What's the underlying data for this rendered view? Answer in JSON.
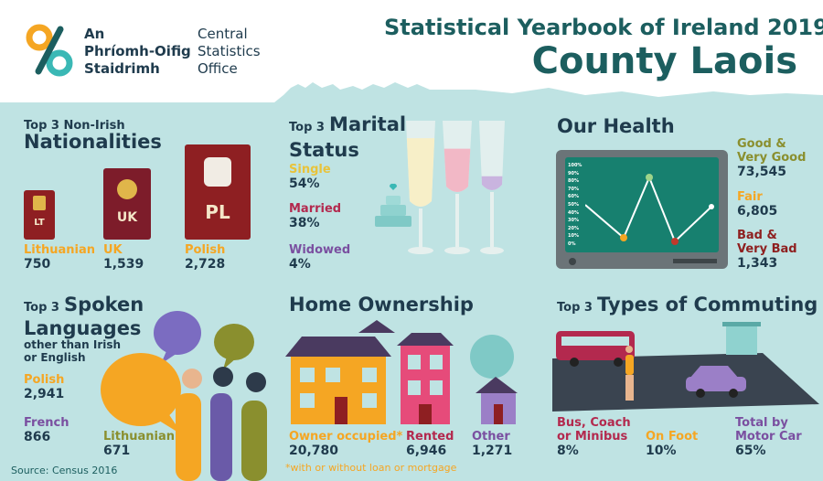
{
  "header": {
    "logo_line1": "An",
    "logo_line2": "Phríomh-Oifig",
    "logo_line3": "Staidrimh",
    "logo_en1": "Central",
    "logo_en2": "Statistics",
    "logo_en3": "Office",
    "title": "Statistical Yearbook of Ireland 2019",
    "subtitle": "County Laois"
  },
  "nationalities": {
    "heading_small": "Top 3 Non-Irish",
    "heading_big": "Nationalities",
    "items": [
      {
        "code": "LT",
        "label": "Lithuanian",
        "value": "750"
      },
      {
        "code": "UK",
        "label": "UK",
        "value": "1,539"
      },
      {
        "code": "PL",
        "label": "Polish",
        "value": "2,728"
      }
    ]
  },
  "marital": {
    "heading_small": "Top 3",
    "heading_big1": "Marital",
    "heading_big2": "Status",
    "items": [
      {
        "label": "Single",
        "value": "54%",
        "fraction": 0.54
      },
      {
        "label": "Married",
        "value": "38%",
        "fraction": 0.38
      },
      {
        "label": "Widowed",
        "value": "4%",
        "fraction": 0.04
      }
    ]
  },
  "health": {
    "heading": "Our Health",
    "ticks": [
      "100%",
      "90%",
      "80%",
      "70%",
      "60%",
      "50%",
      "40%",
      "30%",
      "20%",
      "10%",
      "0%"
    ],
    "items": [
      {
        "label1": "Good &",
        "label2": "Very Good",
        "value": "73,545"
      },
      {
        "label1": "Fair",
        "label2": "",
        "value": "6,805"
      },
      {
        "label1": "Bad &",
        "label2": "Very Bad",
        "value": "1,343"
      }
    ]
  },
  "languages": {
    "heading_small": "Top 3",
    "heading_big1": "Spoken",
    "heading_big2": "Languages",
    "note1": "other than Irish",
    "note2": "or English",
    "items": [
      {
        "label": "Polish",
        "value": "2,941"
      },
      {
        "label": "French",
        "value": "866"
      },
      {
        "label": "Lithuanian",
        "value": "671"
      }
    ]
  },
  "home": {
    "heading": "Home Ownership",
    "items": [
      {
        "label": "Owner occupied*",
        "value": "20,780"
      },
      {
        "label": "Rented",
        "value": "6,946"
      },
      {
        "label": "Other",
        "value": "1,271"
      }
    ],
    "footnote": "*with or without loan or mortgage"
  },
  "commuting": {
    "heading_small": "Top 3",
    "heading_big": "Types of Commuting",
    "items": [
      {
        "label1": "Bus, Coach",
        "label2": "or Minibus",
        "value": "8%"
      },
      {
        "label1": "On Foot",
        "label2": "",
        "value": "10%"
      },
      {
        "label1": "Total by",
        "label2": "Motor Car",
        "value": "65%"
      }
    ]
  },
  "source": "Source: Census 2016"
}
